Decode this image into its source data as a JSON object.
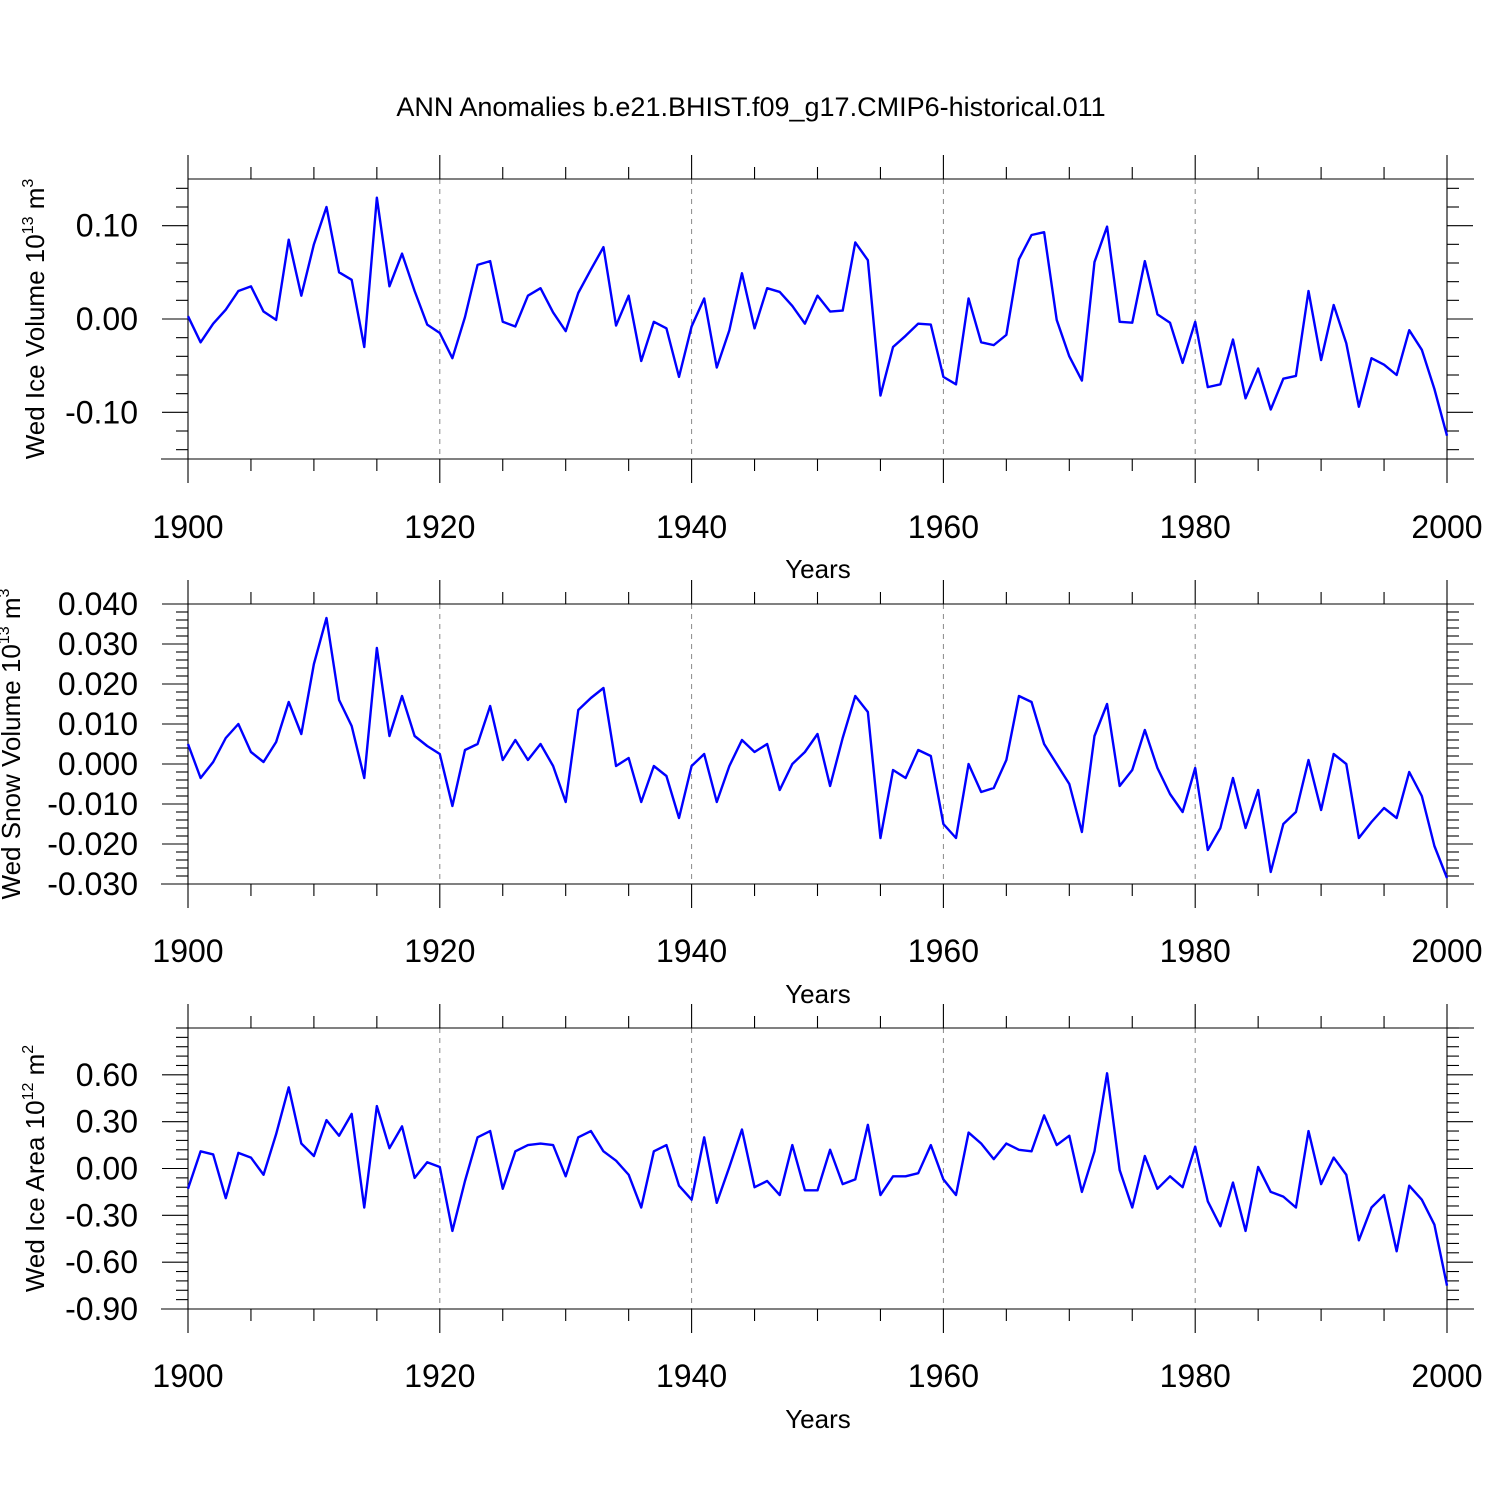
{
  "title": "ANN Anomalies b.e21.BHIST.f09_g17.CMIP6-historical.011",
  "colors": {
    "line": "#0000ff",
    "axis": "#000000",
    "grid": "#888888"
  },
  "chart_data": [
    {
      "type": "line",
      "xlabel": "Years",
      "ylabel": {
        "text": "Wed Ice Volume 10",
        "exp": "13",
        "unit": " m",
        "unit_exp": "3"
      },
      "xlim": [
        1900,
        2000
      ],
      "ylim": [
        -0.15,
        0.15
      ],
      "xticks": [
        "1900",
        "1920",
        "1940",
        "1960",
        "1980",
        "2000"
      ],
      "yticks": [
        {
          "v": 0.1,
          "label": "0.10"
        },
        {
          "v": 0.0,
          "label": "0.00"
        },
        {
          "v": -0.1,
          "label": "-0.10"
        }
      ],
      "grid_years": [
        1920,
        1940,
        1960,
        1980
      ],
      "series": [
        {
          "name": "Wed Ice Volume",
          "x": [
            1900,
            1901,
            1902,
            1903,
            1904,
            1905,
            1906,
            1907,
            1908,
            1909,
            1910,
            1911,
            1912,
            1913,
            1914,
            1915,
            1916,
            1917,
            1918,
            1919,
            1920,
            1921,
            1922,
            1923,
            1924,
            1925,
            1926,
            1927,
            1928,
            1929,
            1930,
            1931,
            1932,
            1933,
            1934,
            1935,
            1936,
            1937,
            1938,
            1939,
            1940,
            1941,
            1942,
            1943,
            1944,
            1945,
            1946,
            1947,
            1948,
            1949,
            1950,
            1951,
            1952,
            1953,
            1954,
            1955,
            1956,
            1957,
            1958,
            1959,
            1960,
            1961,
            1962,
            1963,
            1964,
            1965,
            1966,
            1967,
            1968,
            1969,
            1970,
            1971,
            1972,
            1973,
            1974,
            1975,
            1976,
            1977,
            1978,
            1979,
            1980,
            1981,
            1982,
            1983,
            1984,
            1985,
            1986,
            1987,
            1988,
            1989,
            1990,
            1991,
            1992,
            1993,
            1994,
            1995,
            1996,
            1997,
            1998,
            1999,
            2000
          ],
          "values": [
            0.003,
            -0.025,
            -0.005,
            0.01,
            0.03,
            0.035,
            0.008,
            -0.001,
            0.085,
            0.025,
            0.08,
            0.12,
            0.05,
            0.042,
            -0.03,
            0.13,
            0.035,
            0.07,
            0.03,
            -0.006,
            -0.015,
            -0.042,
            0.002,
            0.058,
            0.062,
            -0.003,
            -0.008,
            0.025,
            0.033,
            0.007,
            -0.013,
            0.028,
            0.053,
            0.077,
            -0.007,
            0.025,
            -0.045,
            -0.003,
            -0.01,
            -0.062,
            -0.008,
            0.022,
            -0.052,
            -0.012,
            0.049,
            -0.01,
            0.033,
            0.029,
            0.014,
            -0.005,
            0.025,
            0.008,
            0.009,
            0.082,
            0.063,
            -0.082,
            -0.03,
            -0.018,
            -0.005,
            -0.006,
            -0.062,
            -0.07,
            0.022,
            -0.025,
            -0.028,
            -0.017,
            0.064,
            0.09,
            0.093,
            -0.001,
            -0.04,
            -0.066,
            0.061,
            0.099,
            -0.003,
            -0.004,
            0.062,
            0.005,
            -0.004,
            -0.047,
            -0.003,
            -0.073,
            -0.07,
            -0.022,
            -0.085,
            -0.053,
            -0.097,
            -0.064,
            -0.061,
            0.03,
            -0.044,
            0.015,
            -0.026,
            -0.094,
            -0.042,
            -0.049,
            -0.06,
            -0.012,
            -0.033,
            -0.075,
            -0.125
          ]
        }
      ]
    },
    {
      "type": "line",
      "xlabel": "Years",
      "ylabel": {
        "text": "Wed Snow Volume 10",
        "exp": "13",
        "unit": " m",
        "unit_exp": "3"
      },
      "xlim": [
        1900,
        2000
      ],
      "ylim": [
        -0.03,
        0.04
      ],
      "xticks": [
        "1900",
        "1920",
        "1940",
        "1960",
        "1980",
        "2000"
      ],
      "yticks": [
        {
          "v": 0.04,
          "label": "0.040"
        },
        {
          "v": 0.03,
          "label": "0.030"
        },
        {
          "v": 0.02,
          "label": "0.020"
        },
        {
          "v": 0.01,
          "label": "0.010"
        },
        {
          "v": 0.0,
          "label": "0.000"
        },
        {
          "v": -0.01,
          "label": "-0.010"
        },
        {
          "v": -0.02,
          "label": "-0.020"
        },
        {
          "v": -0.03,
          "label": "-0.030"
        }
      ],
      "grid_years": [
        1920,
        1940,
        1960,
        1980
      ],
      "series": [
        {
          "name": "Wed Snow Volume",
          "x": [
            1900,
            1901,
            1902,
            1903,
            1904,
            1905,
            1906,
            1907,
            1908,
            1909,
            1910,
            1911,
            1912,
            1913,
            1914,
            1915,
            1916,
            1917,
            1918,
            1919,
            1920,
            1921,
            1922,
            1923,
            1924,
            1925,
            1926,
            1927,
            1928,
            1929,
            1930,
            1931,
            1932,
            1933,
            1934,
            1935,
            1936,
            1937,
            1938,
            1939,
            1940,
            1941,
            1942,
            1943,
            1944,
            1945,
            1946,
            1947,
            1948,
            1949,
            1950,
            1951,
            1952,
            1953,
            1954,
            1955,
            1956,
            1957,
            1958,
            1959,
            1960,
            1961,
            1962,
            1963,
            1964,
            1965,
            1966,
            1967,
            1968,
            1969,
            1970,
            1971,
            1972,
            1973,
            1974,
            1975,
            1976,
            1977,
            1978,
            1979,
            1980,
            1981,
            1982,
            1983,
            1984,
            1985,
            1986,
            1987,
            1988,
            1989,
            1990,
            1991,
            1992,
            1993,
            1994,
            1995,
            1996,
            1997,
            1998,
            1999,
            2000
          ],
          "values": [
            0.005,
            -0.0035,
            0.0005,
            0.0065,
            0.01,
            0.003,
            0.0005,
            0.0055,
            0.0155,
            0.0075,
            0.025,
            0.0365,
            0.016,
            0.0095,
            -0.0035,
            0.029,
            0.007,
            0.017,
            0.007,
            0.0045,
            0.0025,
            -0.0105,
            0.0035,
            0.005,
            0.0145,
            0.001,
            0.006,
            0.001,
            0.005,
            -0.0005,
            -0.0095,
            0.0135,
            0.0165,
            0.019,
            -0.0005,
            0.0015,
            -0.0095,
            -0.0005,
            -0.003,
            -0.0135,
            -0.0005,
            0.0025,
            -0.0095,
            -0.0005,
            0.006,
            0.003,
            0.005,
            -0.0065,
            0.0,
            0.003,
            0.0075,
            -0.0055,
            0.0065,
            0.017,
            0.013,
            -0.0185,
            -0.0015,
            -0.0035,
            0.0035,
            0.002,
            -0.015,
            -0.0185,
            0.0,
            -0.007,
            -0.006,
            0.001,
            0.017,
            0.0155,
            0.005,
            0.0,
            -0.005,
            -0.017,
            0.007,
            0.015,
            -0.0055,
            -0.0015,
            0.0085,
            -0.001,
            -0.0075,
            -0.012,
            -0.001,
            -0.0215,
            -0.016,
            -0.0035,
            -0.016,
            -0.0065,
            -0.027,
            -0.015,
            -0.012,
            0.001,
            -0.0115,
            0.0025,
            0.0,
            -0.0185,
            -0.0145,
            -0.011,
            -0.0135,
            -0.002,
            -0.008,
            -0.0205,
            -0.0285
          ]
        }
      ]
    },
    {
      "type": "line",
      "xlabel": "Years",
      "ylabel": {
        "text": "Wed Ice Area 10",
        "exp": "12",
        "unit": " m",
        "unit_exp": "2"
      },
      "xlim": [
        1900,
        2000
      ],
      "ylim": [
        -0.9,
        0.9
      ],
      "xticks": [
        "1900",
        "1920",
        "1940",
        "1960",
        "1980",
        "2000"
      ],
      "yticks": [
        {
          "v": 0.6,
          "label": "0.60"
        },
        {
          "v": 0.3,
          "label": "0.30"
        },
        {
          "v": 0.0,
          "label": "0.00"
        },
        {
          "v": -0.3,
          "label": "-0.30"
        },
        {
          "v": -0.6,
          "label": "-0.60"
        },
        {
          "v": -0.9,
          "label": "-0.90"
        }
      ],
      "grid_years": [
        1920,
        1940,
        1960,
        1980
      ],
      "series": [
        {
          "name": "Wed Ice Area",
          "x": [
            1900,
            1901,
            1902,
            1903,
            1904,
            1905,
            1906,
            1907,
            1908,
            1909,
            1910,
            1911,
            1912,
            1913,
            1914,
            1915,
            1916,
            1917,
            1918,
            1919,
            1920,
            1921,
            1922,
            1923,
            1924,
            1925,
            1926,
            1927,
            1928,
            1929,
            1930,
            1931,
            1932,
            1933,
            1934,
            1935,
            1936,
            1937,
            1938,
            1939,
            1940,
            1941,
            1942,
            1943,
            1944,
            1945,
            1946,
            1947,
            1948,
            1949,
            1950,
            1951,
            1952,
            1953,
            1954,
            1955,
            1956,
            1957,
            1958,
            1959,
            1960,
            1961,
            1962,
            1963,
            1964,
            1965,
            1966,
            1967,
            1968,
            1969,
            1970,
            1971,
            1972,
            1973,
            1974,
            1975,
            1976,
            1977,
            1978,
            1979,
            1980,
            1981,
            1982,
            1983,
            1984,
            1985,
            1986,
            1987,
            1988,
            1989,
            1990,
            1991,
            1992,
            1993,
            1994,
            1995,
            1996,
            1997,
            1998,
            1999,
            2000
          ],
          "values": [
            -0.13,
            0.11,
            0.09,
            -0.19,
            0.1,
            0.07,
            -0.04,
            0.22,
            0.52,
            0.16,
            0.08,
            0.31,
            0.21,
            0.35,
            -0.25,
            0.4,
            0.13,
            0.27,
            -0.06,
            0.04,
            0.01,
            -0.4,
            -0.08,
            0.2,
            0.24,
            -0.13,
            0.11,
            0.15,
            0.16,
            0.15,
            -0.05,
            0.2,
            0.24,
            0.11,
            0.05,
            -0.04,
            -0.25,
            0.11,
            0.15,
            -0.11,
            -0.2,
            0.2,
            -0.22,
            0.01,
            0.25,
            -0.12,
            -0.08,
            -0.17,
            0.15,
            -0.14,
            -0.14,
            0.12,
            -0.1,
            -0.07,
            0.28,
            -0.17,
            -0.05,
            -0.05,
            -0.03,
            0.15,
            -0.07,
            -0.17,
            0.23,
            0.16,
            0.06,
            0.16,
            0.12,
            0.11,
            0.34,
            0.15,
            0.21,
            -0.15,
            0.11,
            0.61,
            -0.01,
            -0.25,
            0.08,
            -0.13,
            -0.05,
            -0.12,
            0.14,
            -0.21,
            -0.37,
            -0.09,
            -0.4,
            0.01,
            -0.15,
            -0.18,
            -0.25,
            0.24,
            -0.1,
            0.07,
            -0.04,
            -0.46,
            -0.25,
            -0.17,
            -0.53,
            -0.11,
            -0.2,
            -0.36,
            -0.75
          ]
        }
      ]
    }
  ]
}
